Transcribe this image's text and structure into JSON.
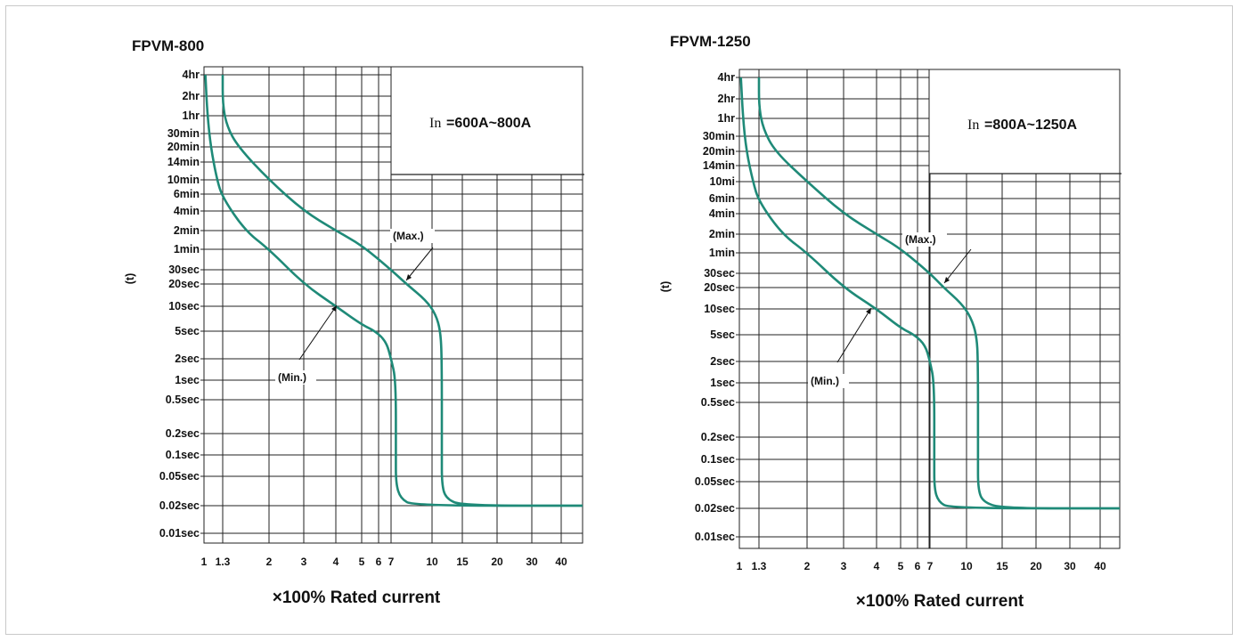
{
  "chart_data": [
    {
      "type": "line",
      "title": "FPVM-800",
      "rating_label": "In",
      "rating_value": "=600A~800A",
      "xlabel": "×100% Rated current",
      "ylabel": "(t)",
      "x_scale": "log",
      "y_scale": "log",
      "xlim": [
        1,
        50
      ],
      "x_ticks": [
        1,
        1.3,
        2,
        3,
        4,
        5,
        6,
        7,
        10,
        15,
        20,
        30,
        40
      ],
      "x_tick_labels": [
        "1",
        "1.3",
        "2",
        "3",
        "4",
        "5",
        "6",
        "7",
        "10",
        "15",
        "20",
        "30",
        "40"
      ],
      "y_ticks_seconds": [
        14400,
        7200,
        3600,
        1800,
        1200,
        840,
        600,
        360,
        240,
        120,
        60,
        30,
        20,
        10,
        5,
        2,
        1,
        0.5,
        0.2,
        0.1,
        0.05,
        0.02,
        0.01
      ],
      "y_tick_labels": [
        "4hr",
        "2hr",
        "1hr",
        "30min",
        "20min",
        "14min",
        "10min",
        "6min",
        "4min",
        "2min",
        "1min",
        "30sec",
        "20sec",
        "10sec",
        "5sec",
        "2sec",
        "1sec",
        "0.5sec",
        "0.2sec",
        "0.1sec",
        "0.05sec",
        "0.02sec",
        "0.01sec"
      ],
      "grid": true,
      "annotations": [
        "(Max.)",
        "(Min.)"
      ],
      "series": [
        {
          "name": "(Min.)",
          "points": [
            [
              1.02,
              14400
            ],
            [
              1.05,
              3600
            ],
            [
              1.1,
              1200
            ],
            [
              1.2,
              600
            ],
            [
              1.3,
              330
            ],
            [
              1.6,
              120
            ],
            [
              2,
              60
            ],
            [
              3,
              20
            ],
            [
              4,
              10
            ],
            [
              5,
              6
            ],
            [
              5.8,
              5
            ],
            [
              6.6,
              3.5
            ],
            [
              7.0,
              2
            ],
            [
              7.3,
              1
            ],
            [
              7.3,
              0.1
            ],
            [
              7.3,
              0.04
            ],
            [
              7.6,
              0.025
            ],
            [
              8.5,
              0.02
            ],
            [
              50,
              0.02
            ]
          ]
        },
        {
          "name": "(Max.)",
          "points": [
            [
              1.3,
              14400
            ],
            [
              1.3,
              5400
            ],
            [
              1.35,
              2400
            ],
            [
              1.5,
              1200
            ],
            [
              2,
              600
            ],
            [
              3,
              240
            ],
            [
              4,
              120
            ],
            [
              5,
              70
            ],
            [
              7,
              30
            ],
            [
              8,
              20
            ],
            [
              9.5,
              12
            ],
            [
              10.5,
              8
            ],
            [
              11.2,
              5
            ],
            [
              11.4,
              2
            ],
            [
              11.4,
              0.1
            ],
            [
              11.4,
              0.04
            ],
            [
              12,
              0.025
            ],
            [
              15,
              0.02
            ],
            [
              50,
              0.02
            ]
          ]
        }
      ],
      "line_color": "#1f8a78"
    },
    {
      "type": "line",
      "title": "FPVM-1250",
      "rating_label": "In",
      "rating_value": "=800A~1250A",
      "xlabel": "×100% Rated current",
      "ylabel": "(t)",
      "x_scale": "log",
      "y_scale": "log",
      "xlim": [
        1,
        50
      ],
      "x_ticks": [
        1,
        1.3,
        2,
        3,
        4,
        5,
        6,
        7,
        10,
        15,
        20,
        30,
        40
      ],
      "x_tick_labels": [
        "1",
        "1.3",
        "2",
        "3",
        "4",
        "5",
        "6",
        "7",
        "10",
        "15",
        "20",
        "30",
        "40"
      ],
      "y_ticks_seconds": [
        14400,
        7200,
        3600,
        1800,
        1200,
        840,
        600,
        360,
        240,
        120,
        60,
        30,
        20,
        10,
        5,
        2,
        1,
        0.5,
        0.2,
        0.1,
        0.05,
        0.02,
        0.01
      ],
      "y_tick_labels": [
        "4hr",
        "2hr",
        "1hr",
        "30min",
        "20min",
        "14min",
        "10mi",
        "6min",
        "4min",
        "2min",
        "1min",
        "30sec",
        "20sec",
        "10sec",
        "5sec",
        "2sec",
        "1sec",
        "0.5sec",
        "0.2sec",
        "0.1sec",
        "0.05sec",
        "0.02sec",
        "0.01sec"
      ],
      "grid": true,
      "annotations": [
        "(Max.)",
        "(Min.)"
      ],
      "series": [
        {
          "name": "(Min.)",
          "points": [
            [
              1.02,
              14400
            ],
            [
              1.05,
              3600
            ],
            [
              1.1,
              1200
            ],
            [
              1.2,
              600
            ],
            [
              1.3,
              330
            ],
            [
              1.6,
              120
            ],
            [
              2,
              60
            ],
            [
              3,
              20
            ],
            [
              4,
              10
            ],
            [
              5,
              6
            ],
            [
              5.8,
              5
            ],
            [
              6.6,
              3.5
            ],
            [
              7.0,
              2
            ],
            [
              7.3,
              1
            ],
            [
              7.3,
              0.1
            ],
            [
              7.3,
              0.04
            ],
            [
              7.6,
              0.025
            ],
            [
              8.5,
              0.02
            ],
            [
              50,
              0.02
            ]
          ]
        },
        {
          "name": "(Max.)",
          "points": [
            [
              1.3,
              14400
            ],
            [
              1.3,
              5400
            ],
            [
              1.35,
              2400
            ],
            [
              1.5,
              1200
            ],
            [
              2,
              600
            ],
            [
              3,
              240
            ],
            [
              4,
              120
            ],
            [
              5,
              70
            ],
            [
              7,
              30
            ],
            [
              8,
              20
            ],
            [
              9.5,
              12
            ],
            [
              10.5,
              8
            ],
            [
              11.2,
              5
            ],
            [
              11.4,
              2
            ],
            [
              11.4,
              0.1
            ],
            [
              11.4,
              0.04
            ],
            [
              12,
              0.025
            ],
            [
              15,
              0.02
            ],
            [
              50,
              0.02
            ]
          ]
        }
      ],
      "line_color": "#1f8a78"
    }
  ]
}
